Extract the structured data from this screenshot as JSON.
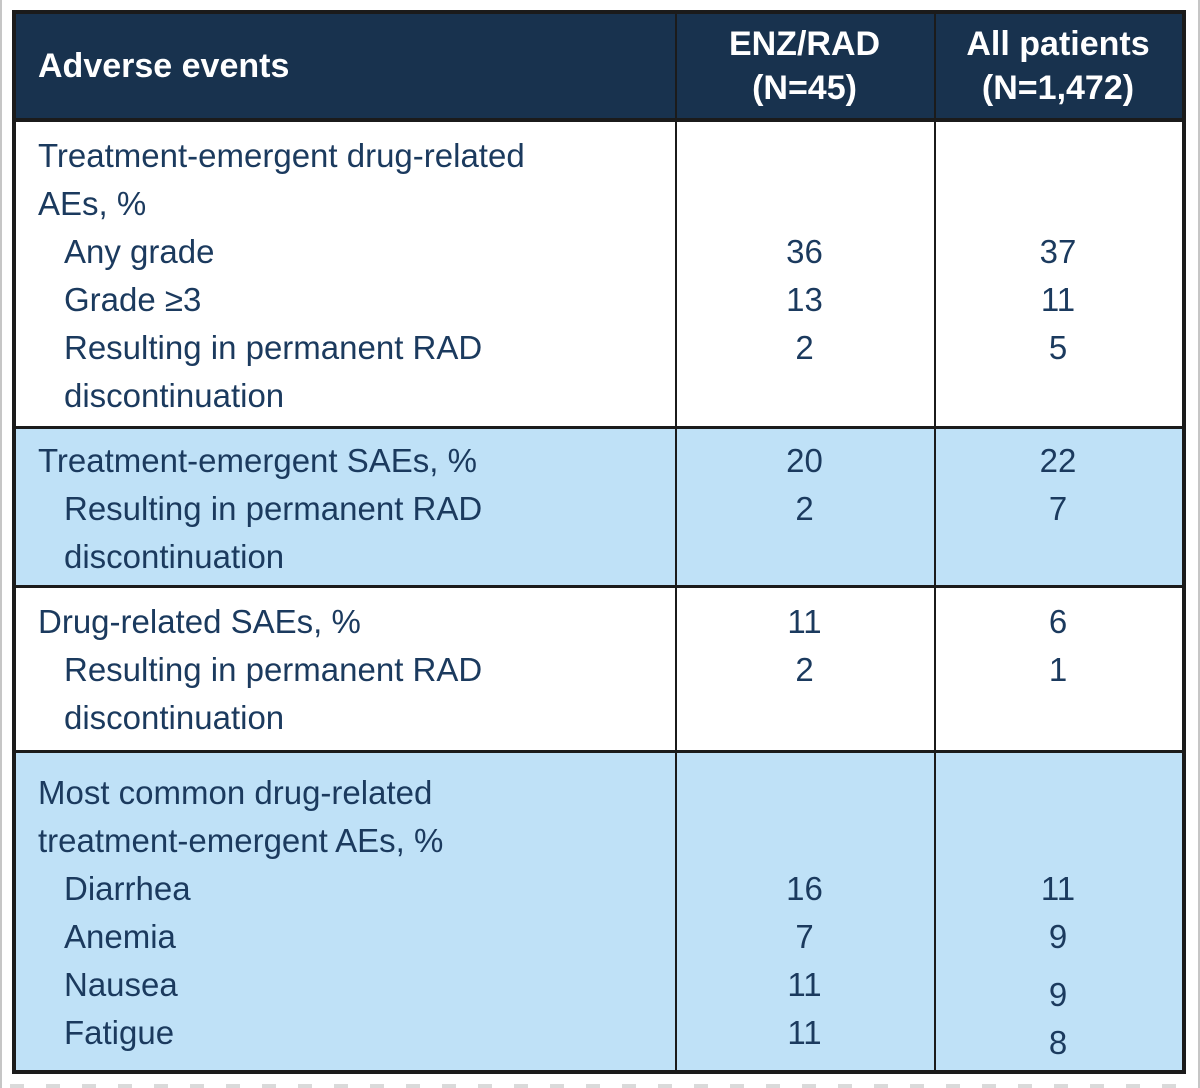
{
  "colors": {
    "header_bg": "#18324e",
    "text": "#1b3a5e",
    "row_alt_bg": "#bfe1f7",
    "border": "#1b1b1b",
    "header_text": "#ffffff"
  },
  "table": {
    "header": {
      "col1": "Adverse events",
      "col2": "ENZ/RAD\n(N=45)",
      "col3": "All patients\n(N=1,472)"
    },
    "sections": [
      {
        "rows": [
          {
            "label": "Treatment-emergent drug-related\nAEs, %",
            "enz": "",
            "all": ""
          },
          {
            "label": "Any grade",
            "enz": "36",
            "all": "37"
          },
          {
            "label": "Grade ≥3",
            "enz": "13",
            "all": "11"
          },
          {
            "label": "Resulting in permanent RAD\ndiscontinuation",
            "enz": "2",
            "all": "5"
          }
        ]
      },
      {
        "rows": [
          {
            "label": "Treatment-emergent SAEs, %",
            "enz": "20",
            "all": "22"
          },
          {
            "label": "Resulting in permanent RAD\ndiscontinuation",
            "enz": "2",
            "all": "7"
          }
        ]
      },
      {
        "rows": [
          {
            "label": "Drug-related SAEs, %",
            "enz": "11",
            "all": "6"
          },
          {
            "label": "Resulting in permanent RAD\ndiscontinuation",
            "enz": "2",
            "all": "1"
          }
        ]
      },
      {
        "rows": [
          {
            "label": "Most common drug-related\ntreatment-emergent AEs, %",
            "enz": "",
            "all": ""
          },
          {
            "label": "Diarrhea",
            "enz": "16",
            "all": "11"
          },
          {
            "label": "Anemia",
            "enz": "7",
            "all": "9"
          },
          {
            "label": "Nausea",
            "enz": "11",
            "all": "9"
          },
          {
            "label": "Fatigue",
            "enz": "11",
            "all": "8"
          }
        ]
      }
    ]
  },
  "chart_data": {
    "type": "table",
    "title": "Adverse events",
    "columns": [
      "Adverse events",
      "ENZ/RAD (N=45)",
      "All patients (N=1,472)"
    ],
    "rows": [
      [
        "Treatment-emergent drug-related AEs, %",
        null,
        null
      ],
      [
        "Any grade",
        36,
        37
      ],
      [
        "Grade ≥3",
        13,
        11
      ],
      [
        "Resulting in permanent RAD discontinuation",
        2,
        5
      ],
      [
        "Treatment-emergent SAEs, %",
        20,
        22
      ],
      [
        "Resulting in permanent RAD discontinuation",
        2,
        7
      ],
      [
        "Drug-related SAEs, %",
        11,
        6
      ],
      [
        "Resulting in permanent RAD discontinuation",
        2,
        1
      ],
      [
        "Most common drug-related treatment-emergent AEs, %",
        null,
        null
      ],
      [
        "Diarrhea",
        16,
        11
      ],
      [
        "Anemia",
        7,
        9
      ],
      [
        "Nausea",
        11,
        9
      ],
      [
        "Fatigue",
        11,
        8
      ]
    ]
  }
}
